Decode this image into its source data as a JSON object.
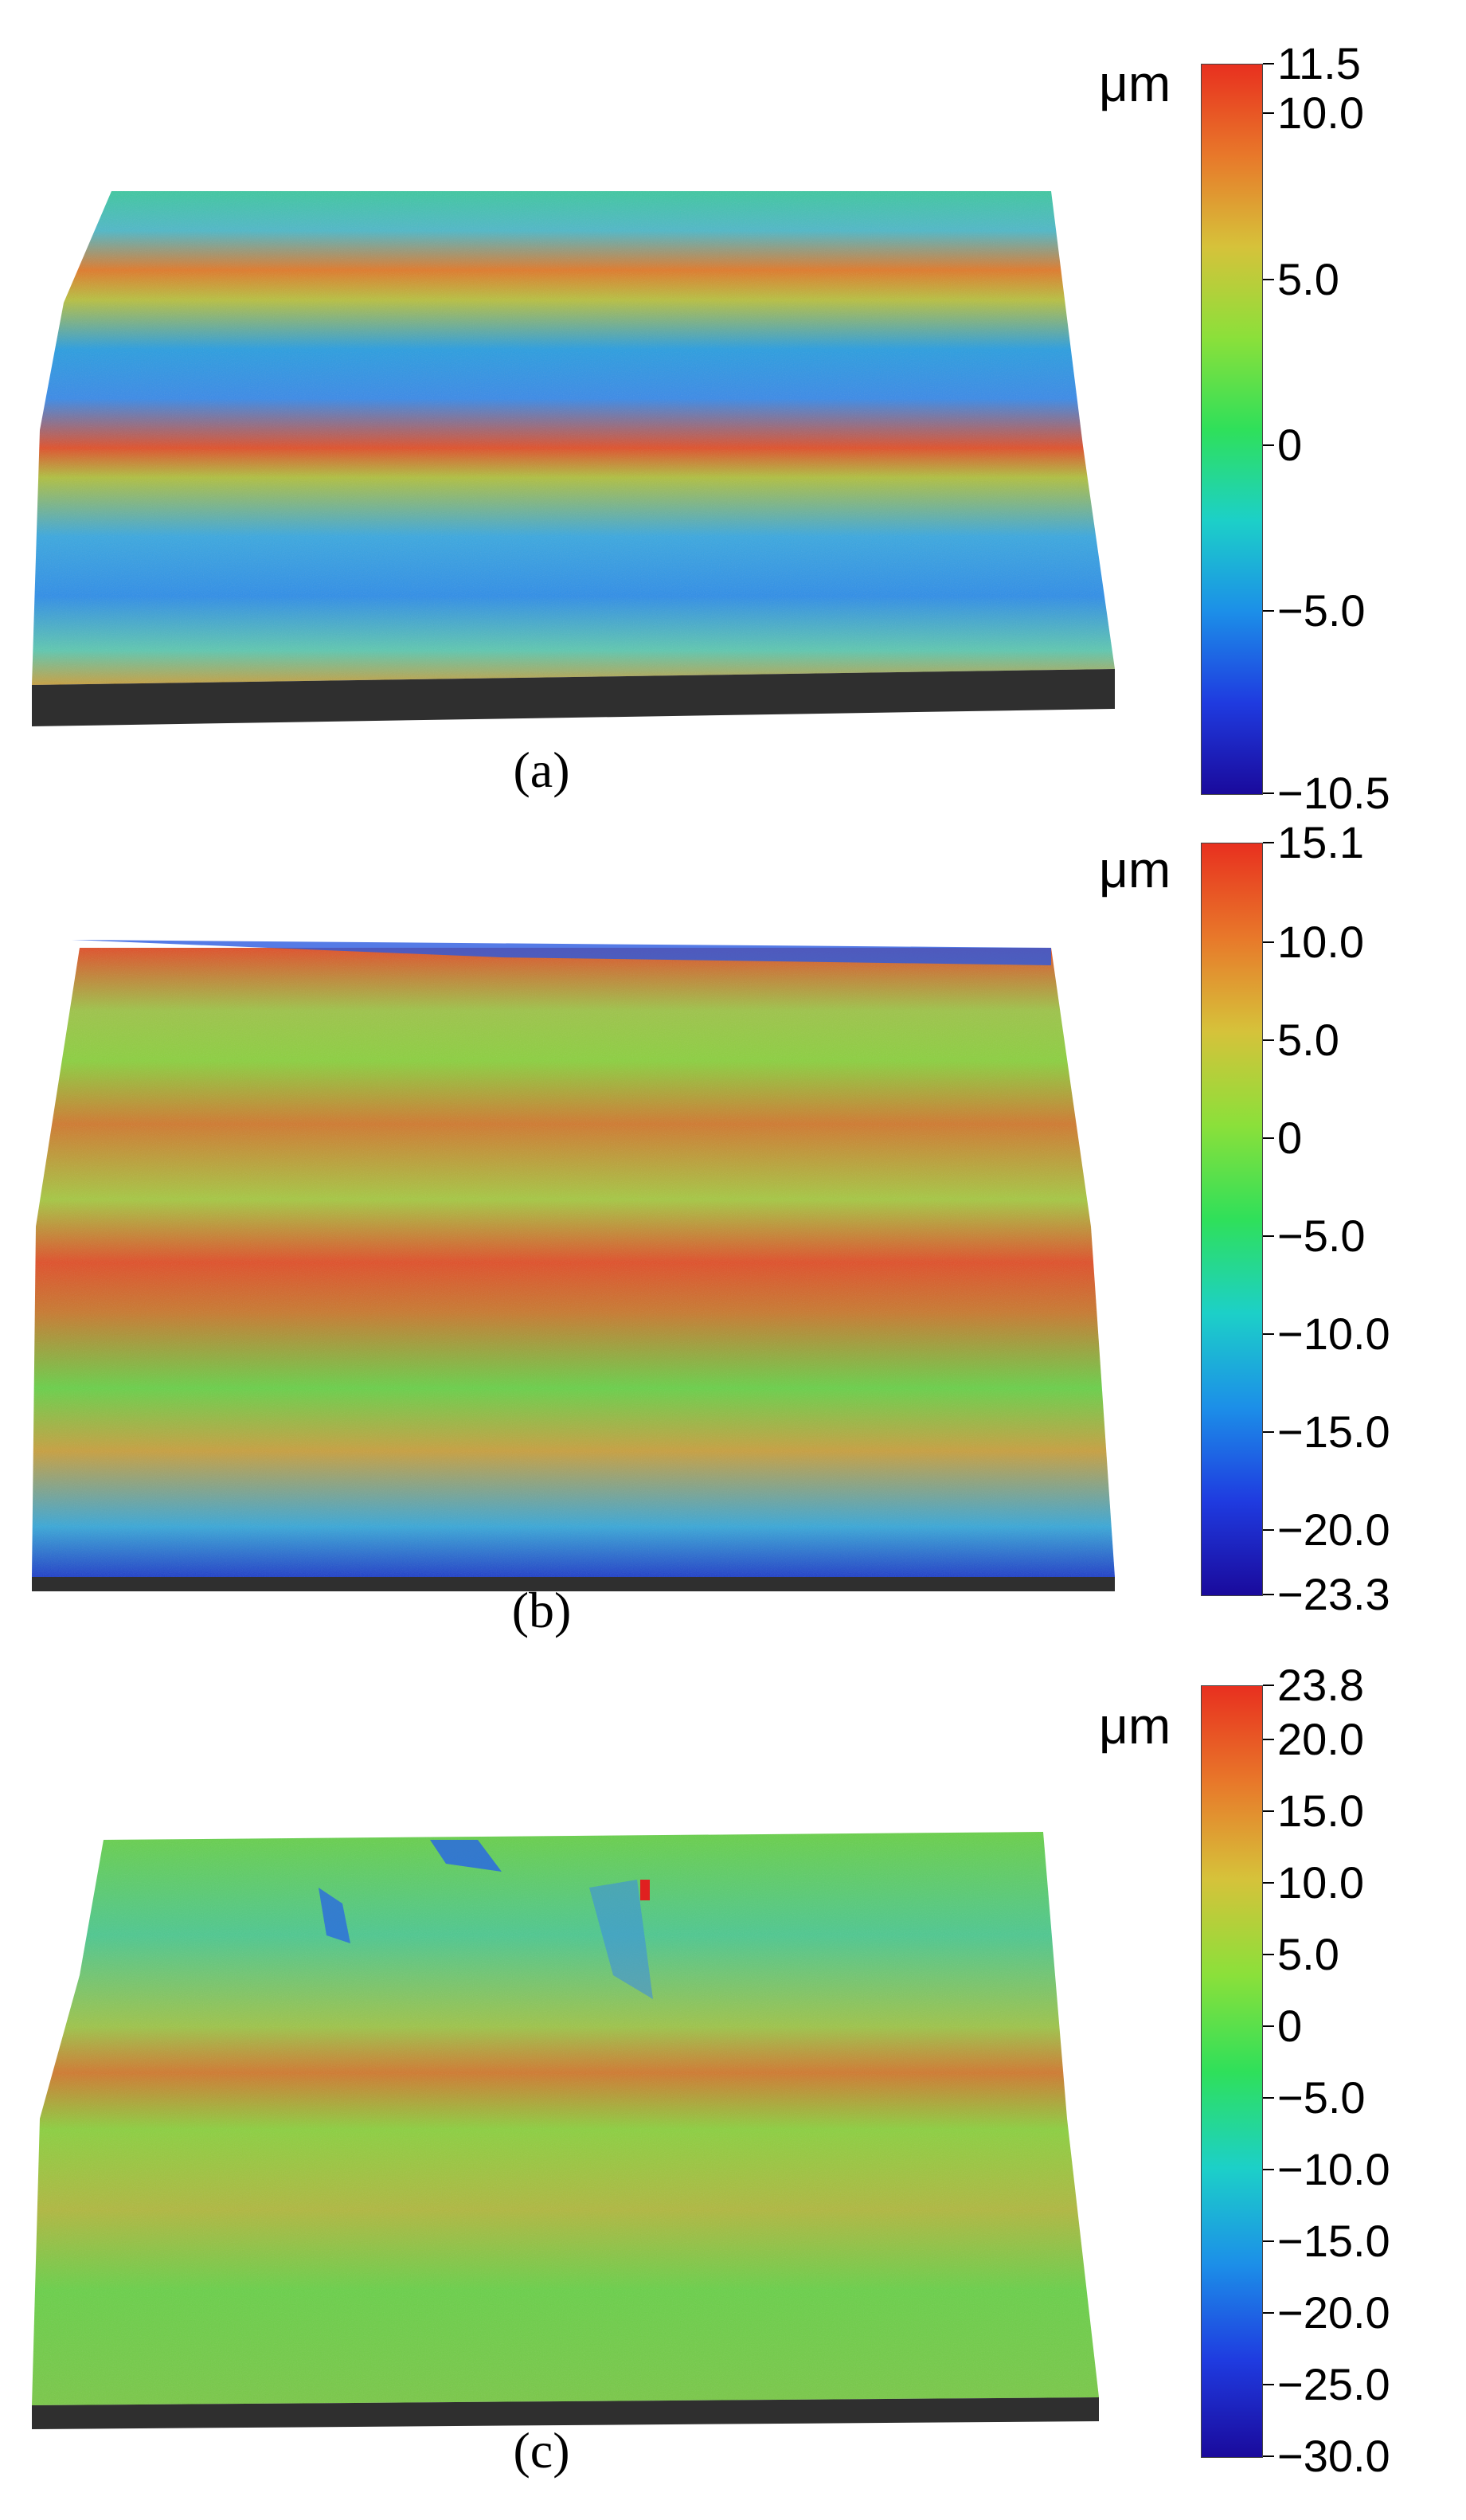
{
  "colormap": [
    "#1a0a9c",
    "#1f3be0",
    "#1c8fe8",
    "#1cd0c8",
    "#2fe05a",
    "#8be03a",
    "#d6c23a",
    "#e8782a",
    "#e8301f"
  ],
  "panels": [
    {
      "caption": "(a)",
      "unit": "μm",
      "max": 11.5,
      "min": -10.5,
      "ticks": [
        "11.5",
        "10.0",
        "5.0",
        "0",
        "−5.0",
        "−10.5"
      ],
      "tick_values": [
        11.5,
        10.0,
        5.0,
        0,
        -5.0,
        -10.5
      ]
    },
    {
      "caption": "(b)",
      "unit": "μm",
      "max": 15.1,
      "min": -23.3,
      "ticks": [
        "15.1",
        "10.0",
        "5.0",
        "0",
        "−5.0",
        "−10.0",
        "−15.0",
        "−20.0",
        "−23.3"
      ],
      "tick_values": [
        15.1,
        10.0,
        5.0,
        0,
        -5.0,
        -10.0,
        -15.0,
        -20.0,
        -23.3
      ]
    },
    {
      "caption": "(c)",
      "unit": "μm",
      "max": 23.8,
      "min": -30.0,
      "ticks": [
        "23.8",
        "20.0",
        "15.0",
        "10.0",
        "5.0",
        "0",
        "−5.0",
        "−10.0",
        "−15.0",
        "−20.0",
        "−25.0",
        "−30.0"
      ],
      "tick_values": [
        23.8,
        20.0,
        15.0,
        10.0,
        5.0,
        0,
        -5.0,
        -10.0,
        -15.0,
        -20.0,
        -25.0,
        -30.0
      ]
    }
  ]
}
